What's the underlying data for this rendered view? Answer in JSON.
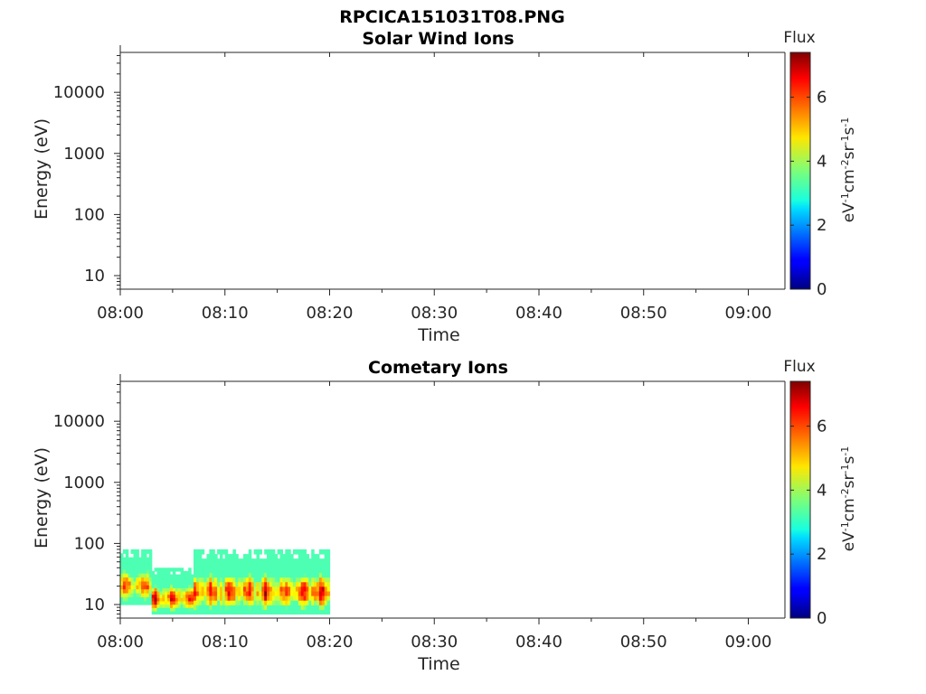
{
  "figure": {
    "title": "RPCICA151031T08.PNG"
  },
  "colorbar": {
    "title": "Flux",
    "units_html": "eV<tspan baseline-shift='super' font-size='11'>-1</tspan>cm<tspan baseline-shift='super' font-size='11'>-2</tspan>sr<tspan baseline-shift='super' font-size='11'>-1</tspan>s<tspan baseline-shift='super' font-size='11'>-1</tspan>",
    "ticks": [
      0,
      2,
      4,
      6
    ],
    "range": [
      0,
      7.4
    ],
    "colormap": "jet"
  },
  "chart_data": [
    {
      "type": "heatmap",
      "title": "Solar Wind Ions",
      "xlabel": "Time",
      "ylabel": "Energy (eV)",
      "x_ticks": [
        "08:00",
        "08:10",
        "08:20",
        "08:30",
        "08:40",
        "08:50",
        "09:00"
      ],
      "x_range_minutes": [
        0,
        63.5
      ],
      "y_ticks": [
        "10",
        "100",
        "1000",
        "10000"
      ],
      "y_scale": "log",
      "y_range": [
        6,
        45000
      ],
      "data": []
    },
    {
      "type": "heatmap",
      "title": "Cometary Ions",
      "xlabel": "Time",
      "ylabel": "Energy (eV)",
      "x_ticks": [
        "08:00",
        "08:10",
        "08:20",
        "08:30",
        "08:40",
        "08:50",
        "09:00"
      ],
      "x_range_minutes": [
        0,
        63.5
      ],
      "y_ticks": [
        "10",
        "100",
        "1000",
        "10000"
      ],
      "y_scale": "log",
      "y_range": [
        6,
        45000
      ],
      "data": [
        {
          "t_start": "08:00",
          "t_end": "08:03",
          "e_min": 10,
          "e_max": 80,
          "peak_flux": 6.8
        },
        {
          "t_start": "08:03",
          "t_end": "08:07",
          "e_min": 7,
          "e_max": 40,
          "peak_flux": 7.2
        },
        {
          "t_start": "08:07",
          "t_end": "08:20",
          "e_min": 7,
          "e_max": 80,
          "peak_flux": 7.3
        }
      ]
    }
  ]
}
